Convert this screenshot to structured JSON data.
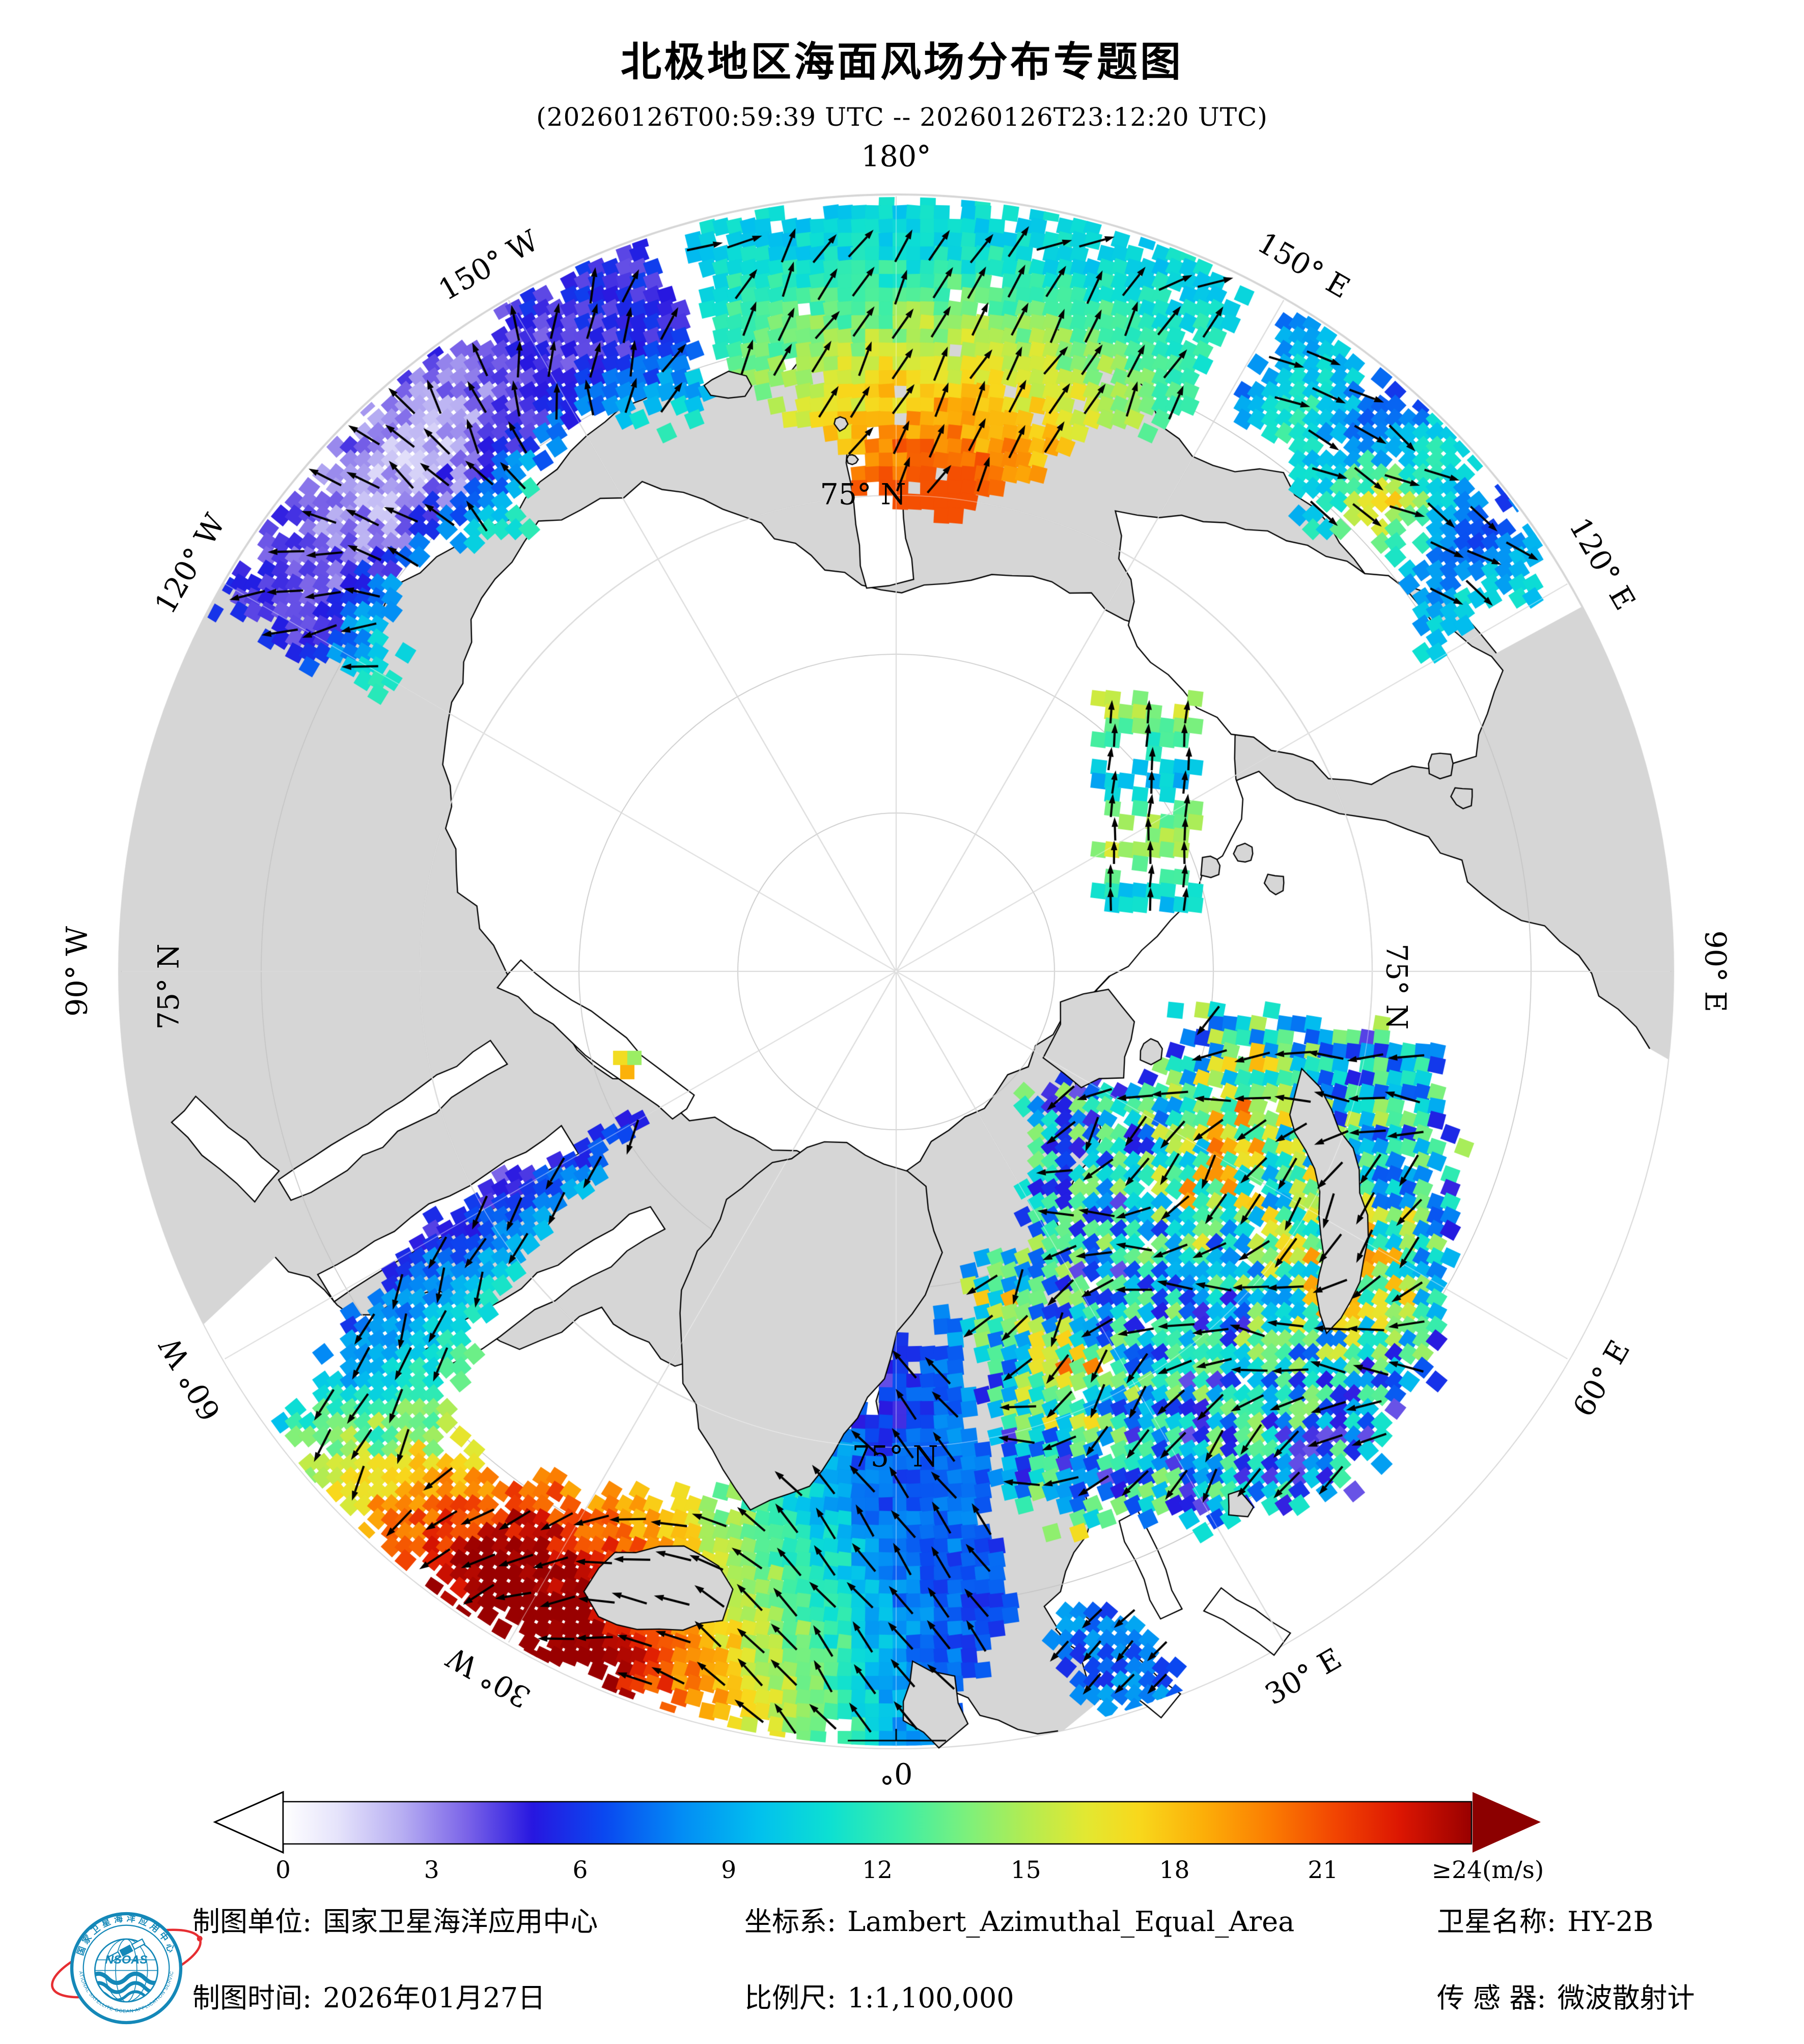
{
  "title": "北极地区海面风场分布专题图",
  "subtitle": "(20260126T00:59:39 UTC -- 20260126T23:12:20 UTC)",
  "map": {
    "meridian_labels": [
      {
        "text": "180°",
        "az": 0
      },
      {
        "text": "150° W",
        "az": -30
      },
      {
        "text": "120° W",
        "az": -60
      },
      {
        "text": "90° W",
        "az": -90
      },
      {
        "text": "60° W",
        "az": -120
      },
      {
        "text": "30° W",
        "az": -150
      },
      {
        "text": "0°",
        "az": 180
      },
      {
        "text": "30° E",
        "az": 150
      },
      {
        "text": "60° E",
        "az": 120
      },
      {
        "text": "90° E",
        "az": 90
      },
      {
        "text": "120° E",
        "az": 60
      },
      {
        "text": "150° E",
        "az": 30
      }
    ],
    "parallel_labels": [
      "75° N",
      "75° N",
      "75° N",
      "75° N"
    ],
    "land_color": "#d6d6d6",
    "sea_color": "#ffffff",
    "graticule_color": "#c4c4c4",
    "arrow_color": "#000000"
  },
  "colorbar": {
    "ticks": [
      "0",
      "3",
      "6",
      "9",
      "12",
      "15",
      "18",
      "21"
    ],
    "unit_label": "≥24(m/s)",
    "overflow_color": "#8c0000",
    "stops": [
      {
        "t": 0.0,
        "c": "#ffffff"
      },
      {
        "t": 0.045,
        "c": "#e6e4fb"
      },
      {
        "t": 0.1,
        "c": "#b7aef2"
      },
      {
        "t": 0.155,
        "c": "#7a63e8"
      },
      {
        "t": 0.21,
        "c": "#2717e0"
      },
      {
        "t": 0.27,
        "c": "#0a48f0"
      },
      {
        "t": 0.335,
        "c": "#038cf5"
      },
      {
        "t": 0.4,
        "c": "#02c0ee"
      },
      {
        "t": 0.46,
        "c": "#0de0d2"
      },
      {
        "t": 0.52,
        "c": "#3deea6"
      },
      {
        "t": 0.575,
        "c": "#7cf07c"
      },
      {
        "t": 0.625,
        "c": "#b2ec52"
      },
      {
        "t": 0.675,
        "c": "#e2e832"
      },
      {
        "t": 0.72,
        "c": "#f8d81c"
      },
      {
        "t": 0.775,
        "c": "#fcae08"
      },
      {
        "t": 0.83,
        "c": "#fb7d02"
      },
      {
        "t": 0.885,
        "c": "#f24502"
      },
      {
        "t": 0.94,
        "c": "#dc1602"
      },
      {
        "t": 1.0,
        "c": "#990000"
      }
    ]
  },
  "footer": {
    "rows": [
      [
        {
          "label": "制图单位:",
          "value": "国家卫星海洋应用中心"
        },
        {
          "label": "坐标系:",
          "value": "Lambert_Azimuthal_Equal_Area"
        },
        {
          "label": "卫星名称:",
          "value": "HY-2B"
        }
      ],
      [
        {
          "label": "制图时间:",
          "value": "2026年01月27日"
        },
        {
          "label": "比例尺:",
          "value": "1:1,100,000"
        },
        {
          "label": "传 感 器:",
          "value": "微波散射计"
        }
      ]
    ]
  },
  "logo": {
    "ring_text_top": "国家卫星海洋应用中心",
    "ring_text_bottom": "NATIONAL SATELLITE OCEAN APPLICATION SERVICE",
    "mark_text": "NSOAS",
    "blue": "#1488b8",
    "red": "#e62e32"
  }
}
